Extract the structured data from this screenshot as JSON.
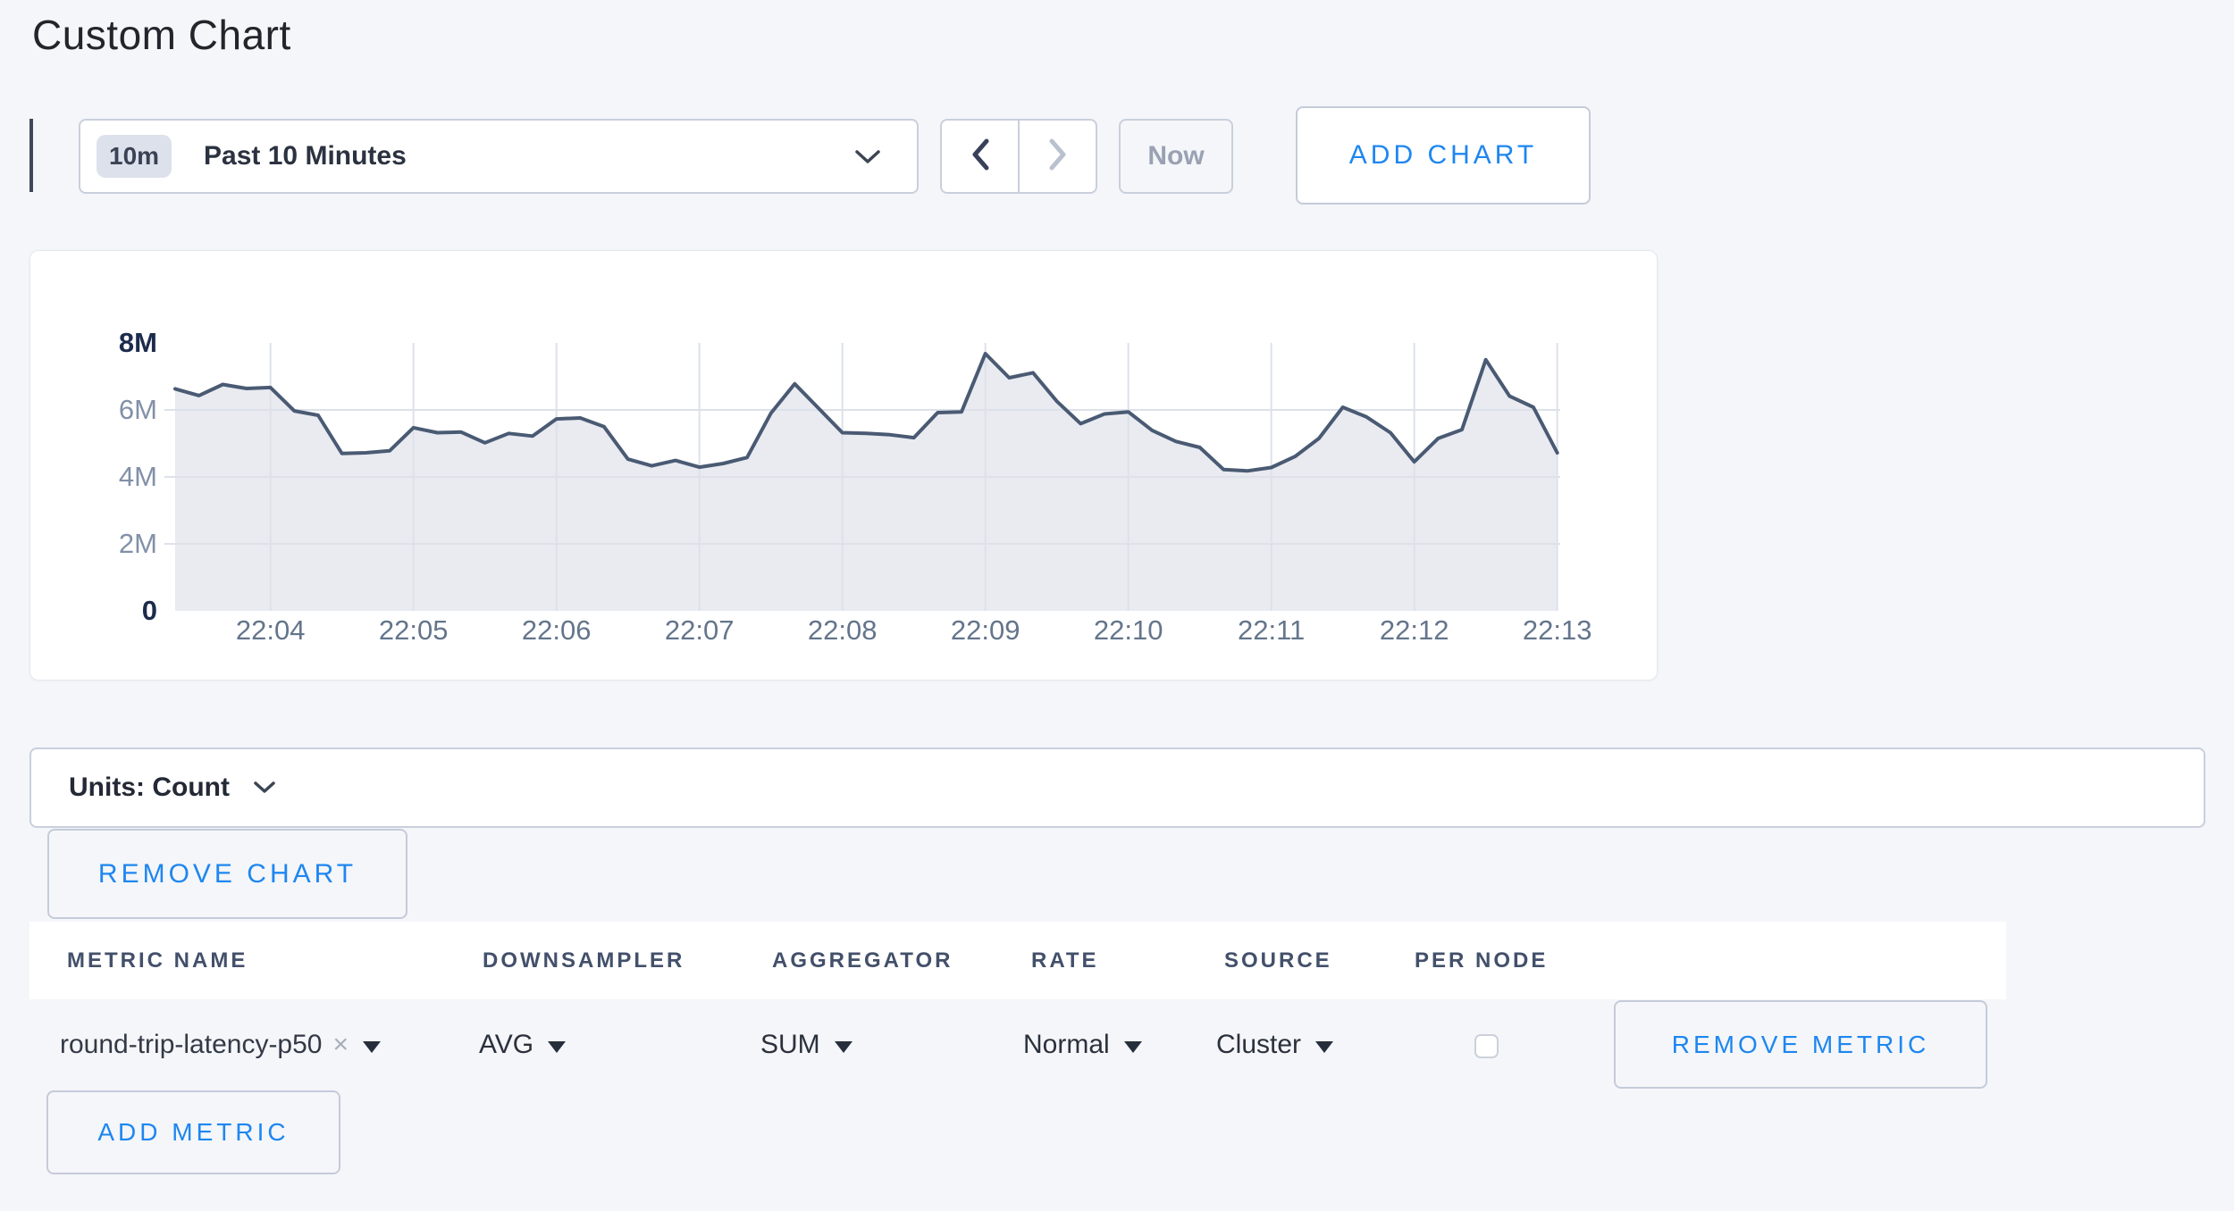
{
  "page": {
    "title": "Custom Chart"
  },
  "toolbar": {
    "time_range": {
      "badge": "10m",
      "label": "Past 10 Minutes"
    },
    "now_label": "Now",
    "add_chart_label": "ADD CHART"
  },
  "units_bar": {
    "label": "Units: Count"
  },
  "remove_chart_label": "REMOVE CHART",
  "icons": {
    "remove_tag_glyph": "×"
  },
  "colors": {
    "accent_blue": "#1e86f0",
    "line": "#4a5a73",
    "area_fill": "#e9ebf1",
    "grid": "#dde1ea",
    "axis_label_minor": "#8290a8",
    "axis_label_major": "#1d2b4c",
    "x_label": "#64758c",
    "page_bg": "#f4f6f9"
  },
  "chart_data": {
    "type": "area",
    "title": "",
    "series_name": "round-trip-latency-p50",
    "x_start": "22:03:20",
    "interval_seconds": 10,
    "x_tick_labels": [
      "22:04",
      "22:05",
      "22:06",
      "22:07",
      "22:08",
      "22:09",
      "22:10",
      "22:11",
      "22:12",
      "22:13"
    ],
    "y_ticks": [
      {
        "label": "0",
        "value_millions": 0,
        "major": true
      },
      {
        "label": "2M",
        "value_millions": 2,
        "major": false
      },
      {
        "label": "4M",
        "value_millions": 4,
        "major": false
      },
      {
        "label": "6M",
        "value_millions": 6,
        "major": false
      },
      {
        "label": "8M",
        "value_millions": 8,
        "major": true
      }
    ],
    "ylim_millions": [
      0,
      8
    ],
    "grid": true,
    "legend": "none",
    "values_millions": [
      6.63,
      6.43,
      6.76,
      6.64,
      6.67,
      5.97,
      5.84,
      4.7,
      4.72,
      4.78,
      5.47,
      5.32,
      5.34,
      5.02,
      5.3,
      5.22,
      5.73,
      5.76,
      5.5,
      4.53,
      4.33,
      4.49,
      4.29,
      4.4,
      4.58,
      5.9,
      6.78,
      6.05,
      5.32,
      5.3,
      5.26,
      5.17,
      5.92,
      5.94,
      7.68,
      6.96,
      7.11,
      6.26,
      5.59,
      5.88,
      5.94,
      5.39,
      5.06,
      4.88,
      4.22,
      4.18,
      4.28,
      4.61,
      5.15,
      6.08,
      5.79,
      5.32,
      4.45,
      5.15,
      5.41,
      7.5,
      6.41,
      6.08,
      4.72
    ]
  },
  "metrics_table": {
    "columns": [
      "METRIC NAME",
      "DOWNSAMPLER",
      "AGGREGATOR",
      "RATE",
      "SOURCE",
      "PER NODE"
    ],
    "row": {
      "metric_name": "round-trip-latency-p50",
      "downsampler": "AVG",
      "aggregator": "SUM",
      "rate": "Normal",
      "source": "Cluster",
      "per_node_checked": false,
      "remove_label": "REMOVE METRIC"
    },
    "add_metric_label": "ADD METRIC"
  }
}
